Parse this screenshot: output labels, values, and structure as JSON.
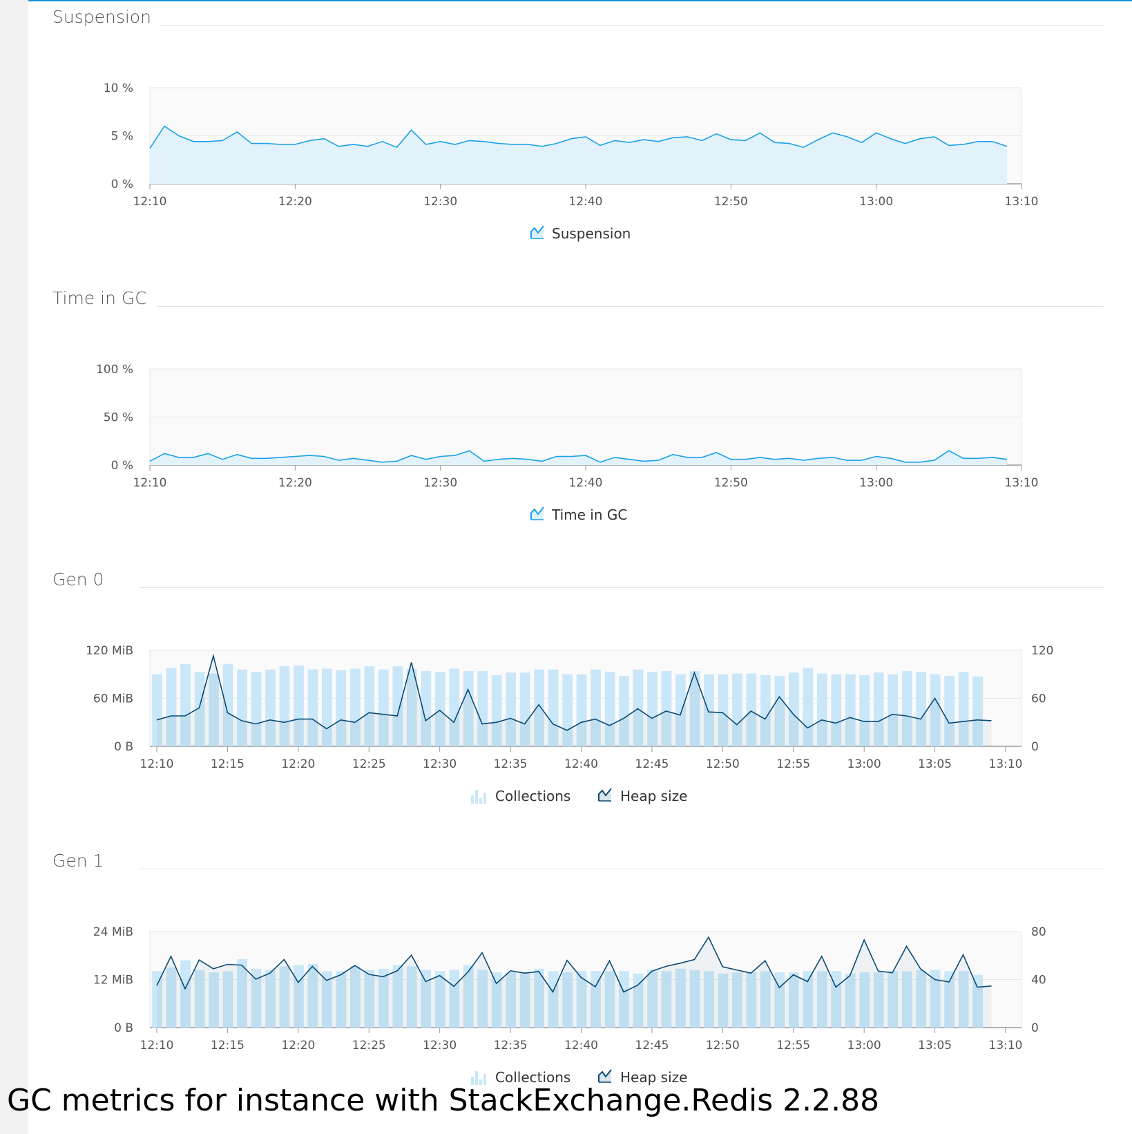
{
  "caption": "GC metrics for instance with StackExchange.Redis 2.2.88",
  "colors": {
    "line_light": "#1aa0e8",
    "fill_light": "#e2f2fb",
    "bar": "#c9e7f8",
    "line_dark": "#0b4a73",
    "plot_bg": "#fafafa",
    "grid": "#e6e6e6"
  },
  "legend_icons": {
    "line": "line-chart-icon",
    "bar": "bar-chart-icon"
  },
  "panels": [
    {
      "title": "Suspension"
    },
    {
      "title": "Time in GC"
    },
    {
      "title": "Gen 0"
    },
    {
      "title": "Gen 1"
    }
  ],
  "chart_data": [
    {
      "type": "area",
      "title": "Suspension",
      "x_ticks": [
        "12:10",
        "12:20",
        "12:30",
        "12:40",
        "12:50",
        "13:00",
        "13:10"
      ],
      "y_ticks": [
        "0 %",
        "5 %",
        "10 %"
      ],
      "ylim": [
        0,
        10
      ],
      "x_range_minutes": [
        0,
        60
      ],
      "series": [
        {
          "name": "Suspension",
          "x_start_minutes": 0,
          "x_step_minutes": 1,
          "values": [
            3.7,
            6.0,
            5.0,
            4.4,
            4.4,
            4.5,
            5.4,
            4.2,
            4.2,
            4.1,
            4.1,
            4.5,
            4.7,
            3.9,
            4.1,
            3.9,
            4.4,
            3.8,
            5.6,
            4.1,
            4.4,
            4.1,
            4.5,
            4.4,
            4.2,
            4.1,
            4.1,
            3.9,
            4.2,
            4.7,
            4.9,
            4.0,
            4.5,
            4.3,
            4.6,
            4.4,
            4.8,
            4.9,
            4.5,
            5.2,
            4.6,
            4.5,
            5.3,
            4.3,
            4.2,
            3.8,
            4.6,
            5.3,
            4.9,
            4.3,
            5.3,
            4.7,
            4.2,
            4.7,
            4.9,
            4.0,
            4.1,
            4.4,
            4.4,
            3.9
          ]
        }
      ],
      "legend": "bottom-center",
      "grid": true
    },
    {
      "type": "area",
      "title": "Time in GC",
      "x_ticks": [
        "12:10",
        "12:20",
        "12:30",
        "12:40",
        "12:50",
        "13:00",
        "13:10"
      ],
      "y_ticks": [
        "0 %",
        "50 %",
        "100 %"
      ],
      "ylim": [
        0,
        100
      ],
      "x_range_minutes": [
        0,
        60
      ],
      "series": [
        {
          "name": "Time in GC",
          "x_start_minutes": 0,
          "x_step_minutes": 1,
          "values": [
            4,
            12,
            8,
            8,
            12,
            6,
            11,
            7,
            7,
            8,
            9,
            10,
            9,
            5,
            7,
            5,
            3,
            4,
            10,
            6,
            9,
            10,
            15,
            4,
            6,
            7,
            6,
            4,
            9,
            9,
            10,
            3,
            8,
            6,
            4,
            5,
            11,
            8,
            8,
            13,
            6,
            6,
            8,
            6,
            7,
            5,
            7,
            8,
            5,
            5,
            9,
            7,
            3,
            3,
            5,
            15,
            7,
            7,
            8,
            6
          ]
        }
      ],
      "legend": "bottom-center",
      "grid": true
    },
    {
      "type": "bar+line",
      "title": "Gen 0",
      "x_ticks": [
        "12:10",
        "12:15",
        "12:20",
        "12:25",
        "12:30",
        "12:35",
        "12:40",
        "12:45",
        "12:50",
        "12:55",
        "13:00",
        "13:05",
        "13:10"
      ],
      "y_left_ticks": [
        "0 B",
        "60 MiB",
        "120 MiB"
      ],
      "y_right_ticks": [
        "0",
        "60",
        "120"
      ],
      "ylim_left": [
        0,
        120
      ],
      "ylim_right": [
        0,
        120
      ],
      "x_range_minutes": [
        0,
        60
      ],
      "series": [
        {
          "name": "Collections",
          "type": "bar",
          "axis": "right",
          "x_start_minutes": 0,
          "x_step_minutes": 1,
          "values": [
            90,
            98,
            103,
            93,
            91,
            103,
            96,
            93,
            96,
            100,
            101,
            96,
            97,
            95,
            97,
            100,
            96,
            100,
            97,
            94,
            93,
            97,
            94,
            94,
            89,
            92,
            92,
            96,
            96,
            90,
            90,
            96,
            93,
            88,
            96,
            93,
            94,
            90,
            94,
            90,
            90,
            91,
            91,
            89,
            88,
            92,
            98,
            91,
            90,
            90,
            89,
            92,
            90,
            94,
            93,
            90,
            88,
            93,
            87
          ]
        },
        {
          "name": "Heap size",
          "type": "line",
          "axis": "left",
          "x_start_minutes": 0,
          "x_step_minutes": 1,
          "values": [
            33,
            38,
            38,
            48,
            113,
            42,
            32,
            28,
            33,
            30,
            34,
            34,
            22,
            33,
            30,
            42,
            40,
            38,
            105,
            32,
            45,
            30,
            71,
            28,
            30,
            35,
            28,
            52,
            28,
            20,
            30,
            34,
            26,
            35,
            47,
            35,
            44,
            39,
            92,
            43,
            42,
            27,
            44,
            34,
            62,
            40,
            23,
            33,
            29,
            36,
            31,
            31,
            40,
            38,
            34,
            60,
            29,
            31,
            33,
            32
          ]
        }
      ],
      "legend": "bottom-center",
      "grid": true
    },
    {
      "type": "bar+line",
      "title": "Gen 1",
      "x_ticks": [
        "12:10",
        "12:15",
        "12:20",
        "12:25",
        "12:30",
        "12:35",
        "12:40",
        "12:45",
        "12:50",
        "12:55",
        "13:00",
        "13:05",
        "13:10"
      ],
      "y_left_ticks": [
        "0 B",
        "12 MiB",
        "24 MiB"
      ],
      "y_right_ticks": [
        "0",
        "40",
        "80"
      ],
      "ylim_left": [
        0,
        24
      ],
      "ylim_right": [
        0,
        80
      ],
      "x_range_minutes": [
        0,
        60
      ],
      "series": [
        {
          "name": "Collections",
          "type": "bar",
          "axis": "right",
          "x_start_minutes": 0,
          "x_step_minutes": 1,
          "values": [
            47,
            50,
            56,
            48,
            46,
            47,
            57,
            49,
            48,
            51,
            52,
            53,
            47,
            47,
            51,
            48,
            49,
            52,
            51,
            48,
            47,
            48,
            52,
            48,
            46,
            46,
            46,
            49,
            47,
            46,
            47,
            47,
            47,
            47,
            45,
            48,
            47,
            49,
            48,
            47,
            45,
            46,
            46,
            47,
            46,
            46,
            47,
            47,
            47,
            45,
            46,
            46,
            47,
            47,
            48,
            48,
            47,
            47,
            44
          ]
        },
        {
          "name": "Heap size",
          "type": "line",
          "axis": "left",
          "x_start_minutes": 0,
          "x_step_minutes": 1,
          "values": [
            10.5,
            17.8,
            9.7,
            16.9,
            14.7,
            15.8,
            15.6,
            12.1,
            13.6,
            17.0,
            11.3,
            15.3,
            11.8,
            13.2,
            15.5,
            13.3,
            12.7,
            14.2,
            18.1,
            11.5,
            13.0,
            10.3,
            13.9,
            18.7,
            11.0,
            14.2,
            13.6,
            14.0,
            8.9,
            16.8,
            12.5,
            10.2,
            16.7,
            8.9,
            10.6,
            14.1,
            15.3,
            16.1,
            17.0,
            22.6,
            15.2,
            14.4,
            13.6,
            16.7,
            10.0,
            13.2,
            11.5,
            17.8,
            10.1,
            13.0,
            21.9,
            14.1,
            13.7,
            20.3,
            14.6,
            12.0,
            11.4,
            18.2,
            10.1,
            10.4
          ]
        }
      ],
      "legend": "bottom-center",
      "grid": true
    }
  ]
}
